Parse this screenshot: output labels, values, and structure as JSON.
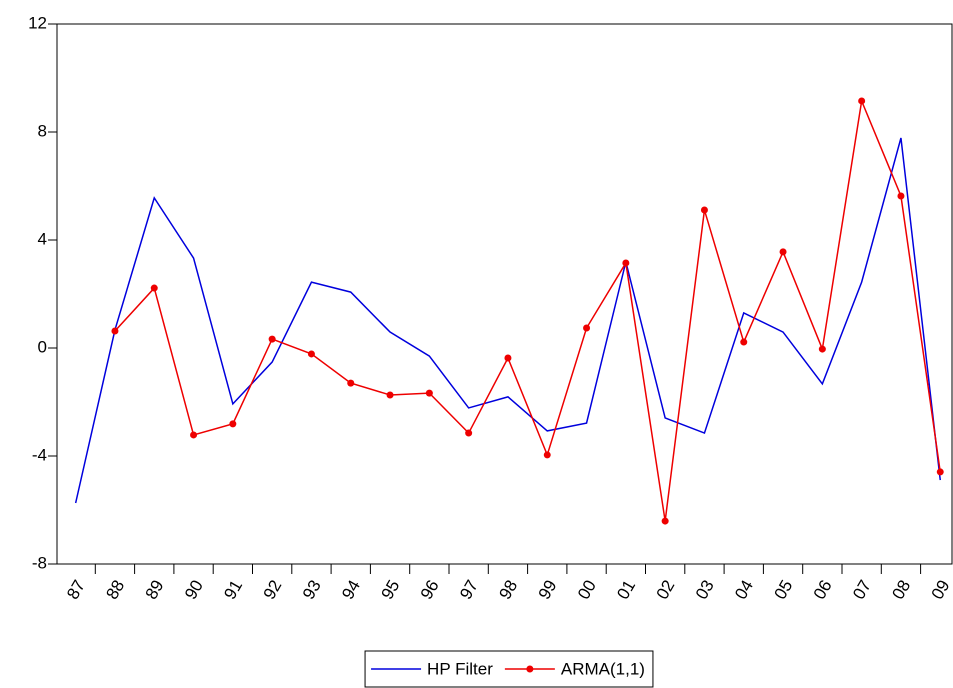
{
  "chart_data": {
    "type": "line",
    "categories": [
      "87",
      "88",
      "89",
      "90",
      "91",
      "92",
      "93",
      "94",
      "95",
      "96",
      "97",
      "98",
      "99",
      "00",
      "01",
      "02",
      "03",
      "04",
      "05",
      "06",
      "07",
      "08",
      "09"
    ],
    "series": [
      {
        "name": "HP Filter",
        "color": "#0000dd",
        "marker": false,
        "values": [
          -5.74,
          0.67,
          5.56,
          3.33,
          -2.07,
          -0.52,
          2.44,
          2.07,
          0.59,
          -0.3,
          -2.22,
          -1.81,
          -3.07,
          -2.78,
          3.19,
          -2.59,
          -3.15,
          1.3,
          0.59,
          -1.33,
          2.44,
          7.78,
          -4.89
        ]
      },
      {
        "name": "ARMA(1,1)",
        "color": "#ee0000",
        "marker": true,
        "values": [
          null,
          0.63,
          2.22,
          -3.22,
          -2.81,
          0.33,
          -0.22,
          -1.3,
          -1.74,
          -1.67,
          -3.15,
          -0.37,
          -3.96,
          0.74,
          3.15,
          -6.41,
          5.11,
          0.22,
          3.56,
          -0.04,
          9.15,
          5.63,
          -4.59
        ]
      }
    ],
    "ylim": [
      -8,
      12
    ],
    "yticks": [
      -8,
      -4,
      0,
      4,
      8,
      12
    ],
    "legend": "bottom"
  }
}
